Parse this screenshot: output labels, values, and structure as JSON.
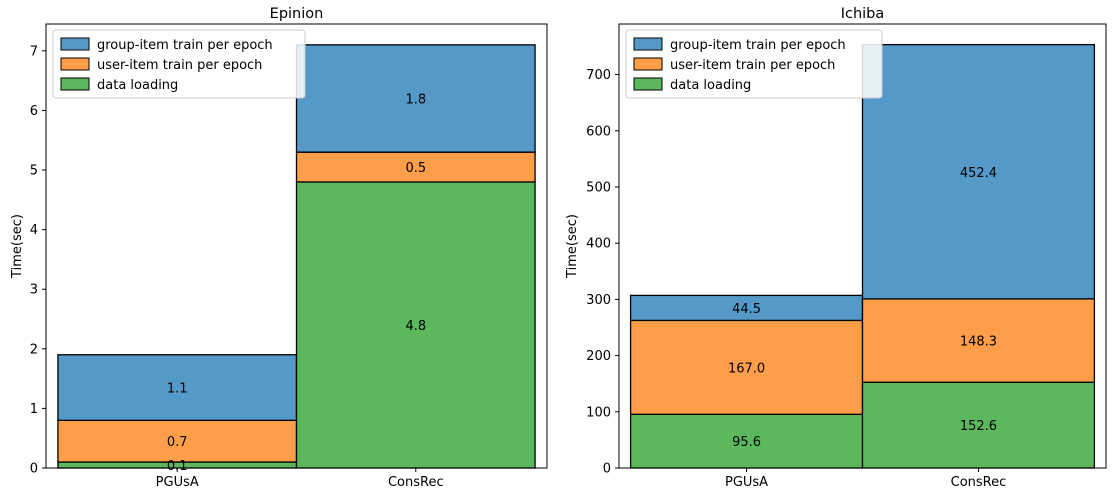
{
  "chart_data": [
    {
      "type": "bar",
      "stacked": true,
      "title": "Epinion",
      "xlabel": "",
      "ylabel": "Time(sec)",
      "categories": [
        "PGUsA",
        "ConsRec"
      ],
      "ylim": [
        0,
        7.45
      ],
      "yticks": [
        0,
        1,
        2,
        3,
        4,
        5,
        6,
        7
      ],
      "series": [
        {
          "name": "data loading",
          "color": "#5cb85c",
          "values": [
            0.1,
            4.8
          ],
          "labels": [
            "0.1",
            "4.8"
          ]
        },
        {
          "name": "user-item train per epoch",
          "color": "#ff9e4a",
          "values": [
            0.7,
            0.5
          ],
          "labels": [
            "0.7",
            "0.5"
          ]
        },
        {
          "name": "group-item train per epoch",
          "color": "#5499c7",
          "values": [
            1.1,
            1.8
          ],
          "labels": [
            "1.1",
            "1.8"
          ]
        }
      ],
      "legend_order": [
        2,
        1,
        0
      ],
      "legend": "top-left",
      "grid": false
    },
    {
      "type": "bar",
      "stacked": true,
      "title": "Ichiba",
      "xlabel": "",
      "ylabel": "Time(sec)",
      "categories": [
        "PGUsA",
        "ConsRec"
      ],
      "ylim": [
        0,
        790
      ],
      "yticks": [
        0,
        100,
        200,
        300,
        400,
        500,
        600,
        700
      ],
      "series": [
        {
          "name": "data loading",
          "color": "#5cb85c",
          "values": [
            95.6,
            152.6
          ],
          "labels": [
            "95.6",
            "152.6"
          ]
        },
        {
          "name": "user-item train  per epoch",
          "color": "#ff9e4a",
          "values": [
            167.0,
            148.3
          ],
          "labels": [
            "167.0",
            "148.3"
          ]
        },
        {
          "name": "group-item train  per epoch",
          "color": "#5499c7",
          "values": [
            44.5,
            452.4
          ],
          "labels": [
            "44.5",
            "452.4"
          ]
        }
      ],
      "legend_order": [
        2,
        1,
        0
      ],
      "legend": "top-left",
      "grid": false
    }
  ]
}
